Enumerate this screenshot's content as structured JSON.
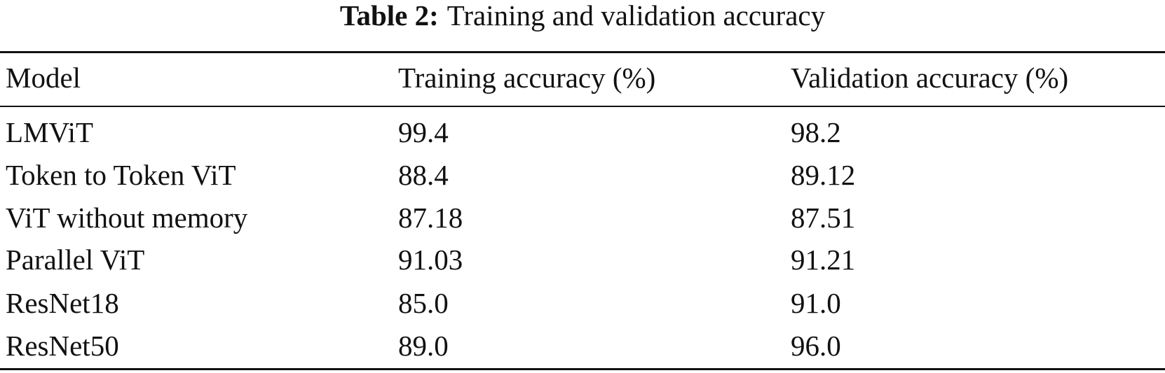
{
  "table": {
    "caption": {
      "label": "Table 2:",
      "text": "Training and validation accuracy"
    },
    "header": [
      "Model",
      "Training accuracy (%)",
      "Validation accuracy (%)"
    ],
    "rows": [
      [
        "LMViT",
        "99.4",
        "98.2"
      ],
      [
        "Token to Token ViT",
        "88.4",
        "89.12"
      ],
      [
        "ViT without memory",
        "87.18",
        "87.51"
      ],
      [
        "Parallel ViT",
        "91.03",
        "91.21"
      ],
      [
        "ResNet18",
        "85.0",
        "91.0"
      ],
      [
        "ResNet50",
        "89.0",
        "96.0"
      ]
    ]
  }
}
